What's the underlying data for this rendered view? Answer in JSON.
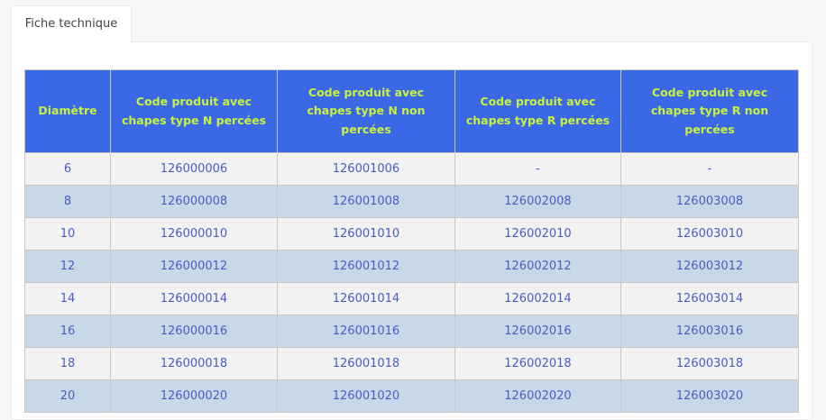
{
  "tab": {
    "label": "Fiche technique"
  },
  "table": {
    "headers": [
      "Diamètre",
      "Code produit avec chapes type N percées",
      "Code produit avec chapes type N non percées",
      "Code produit avec chapes type R percées",
      "Code produit avec chapes type R non percées"
    ],
    "rows": [
      [
        "6",
        "126000006",
        "126001006",
        "-",
        "-"
      ],
      [
        "8",
        "126000008",
        "126001008",
        "126002008",
        "126003008"
      ],
      [
        "10",
        "126000010",
        "126001010",
        "126002010",
        "126003010"
      ],
      [
        "12",
        "126000012",
        "126001012",
        "126002012",
        "126003012"
      ],
      [
        "14",
        "126000014",
        "126001014",
        "126002014",
        "126003014"
      ],
      [
        "16",
        "126000016",
        "126001016",
        "126002016",
        "126003016"
      ],
      [
        "18",
        "126000018",
        "126001018",
        "126002018",
        "126003018"
      ],
      [
        "20",
        "126000020",
        "126001020",
        "126002020",
        "126003020"
      ]
    ]
  },
  "colors": {
    "header_bg": "#3b68e6",
    "header_text": "#c8f23e",
    "cell_text": "#4a5cc4",
    "row_odd": "#f2f2f2",
    "row_even": "#c8d8e8"
  }
}
